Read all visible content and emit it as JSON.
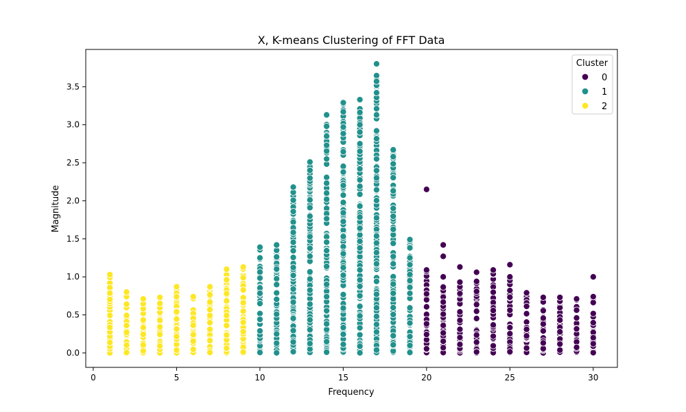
{
  "chart_data": {
    "type": "scatter",
    "title": "X, K-means Clustering of FFT Data",
    "xlabel": "Frequency",
    "ylabel": "Magnitude",
    "xlim": [
      -0.45,
      31.45
    ],
    "ylim": [
      -0.19,
      3.99
    ],
    "xticks": [
      0,
      5,
      10,
      15,
      20,
      25,
      30
    ],
    "xtick_labels": [
      "0",
      "5",
      "10",
      "15",
      "20",
      "25",
      "30"
    ],
    "yticks": [
      0.0,
      0.5,
      1.0,
      1.5,
      2.0,
      2.5,
      3.0,
      3.5
    ],
    "ytick_labels": [
      "0.0",
      "0.5",
      "1.0",
      "1.5",
      "2.0",
      "2.5",
      "3.0",
      "3.5"
    ],
    "grid": false,
    "legend": {
      "title": "Cluster",
      "placement": "top-right",
      "entries": [
        {
          "label": "0",
          "color": "#440154"
        },
        {
          "label": "1",
          "color": "#21918c"
        },
        {
          "label": "2",
          "color": "#fde725"
        }
      ]
    },
    "series": [
      {
        "cluster": 2,
        "color": "#fde725",
        "columns": [
          {
            "x": 1,
            "max": 1.03
          },
          {
            "x": 2,
            "max": 0.8
          },
          {
            "x": 3,
            "max": 0.71
          },
          {
            "x": 4,
            "max": 0.73
          },
          {
            "x": 5,
            "max": 0.87
          },
          {
            "x": 6,
            "max": 0.74
          },
          {
            "x": 7,
            "max": 0.87
          },
          {
            "x": 8,
            "max": 1.1
          },
          {
            "x": 9,
            "max": 1.13
          }
        ]
      },
      {
        "cluster": 1,
        "color": "#21918c",
        "columns": [
          {
            "x": 10,
            "max": 1.39,
            "outliers": [
              1.25
            ]
          },
          {
            "x": 11,
            "max": 1.42
          },
          {
            "x": 12,
            "max": 2.18
          },
          {
            "x": 13,
            "max": 2.51,
            "outliers": [
              2.4
            ]
          },
          {
            "x": 14,
            "max": 3.13,
            "outliers": [
              2.98,
              2.85,
              2.73,
              2.55
            ]
          },
          {
            "x": 15,
            "max": 3.29,
            "outliers": [
              3.17,
              2.97
            ]
          },
          {
            "x": 16,
            "max": 3.33,
            "outliers": [
              2.75,
              2.65,
              2.42
            ]
          },
          {
            "x": 17,
            "max": 3.8,
            "outliers": [
              3.57,
              3.13,
              2.92,
              2.55,
              2.3
            ]
          },
          {
            "x": 18,
            "max": 2.67,
            "outliers": [
              2.58,
              2.13,
              1.9
            ]
          },
          {
            "x": 19,
            "max": 1.49,
            "outliers": [
              1.25,
              0.95
            ]
          }
        ]
      },
      {
        "cluster": 0,
        "color": "#440154",
        "columns": [
          {
            "x": 20,
            "max": 1.09,
            "outliers": [
              2.15
            ]
          },
          {
            "x": 21,
            "max": 1.0,
            "outliers": [
              1.42,
              1.27
            ]
          },
          {
            "x": 22,
            "max": 0.93,
            "outliers": [
              1.13
            ]
          },
          {
            "x": 23,
            "max": 0.94,
            "outliers": [
              1.06
            ]
          },
          {
            "x": 24,
            "max": 1.04,
            "outliers": [
              1.09
            ]
          },
          {
            "x": 25,
            "max": 1.0,
            "outliers": [
              1.16
            ]
          },
          {
            "x": 26,
            "max": 0.79
          },
          {
            "x": 27,
            "max": 0.73
          },
          {
            "x": 28,
            "max": 0.73
          },
          {
            "x": 29,
            "max": 0.71
          },
          {
            "x": 30,
            "max": 0.74,
            "outliers": [
              1.0
            ]
          }
        ]
      }
    ]
  }
}
